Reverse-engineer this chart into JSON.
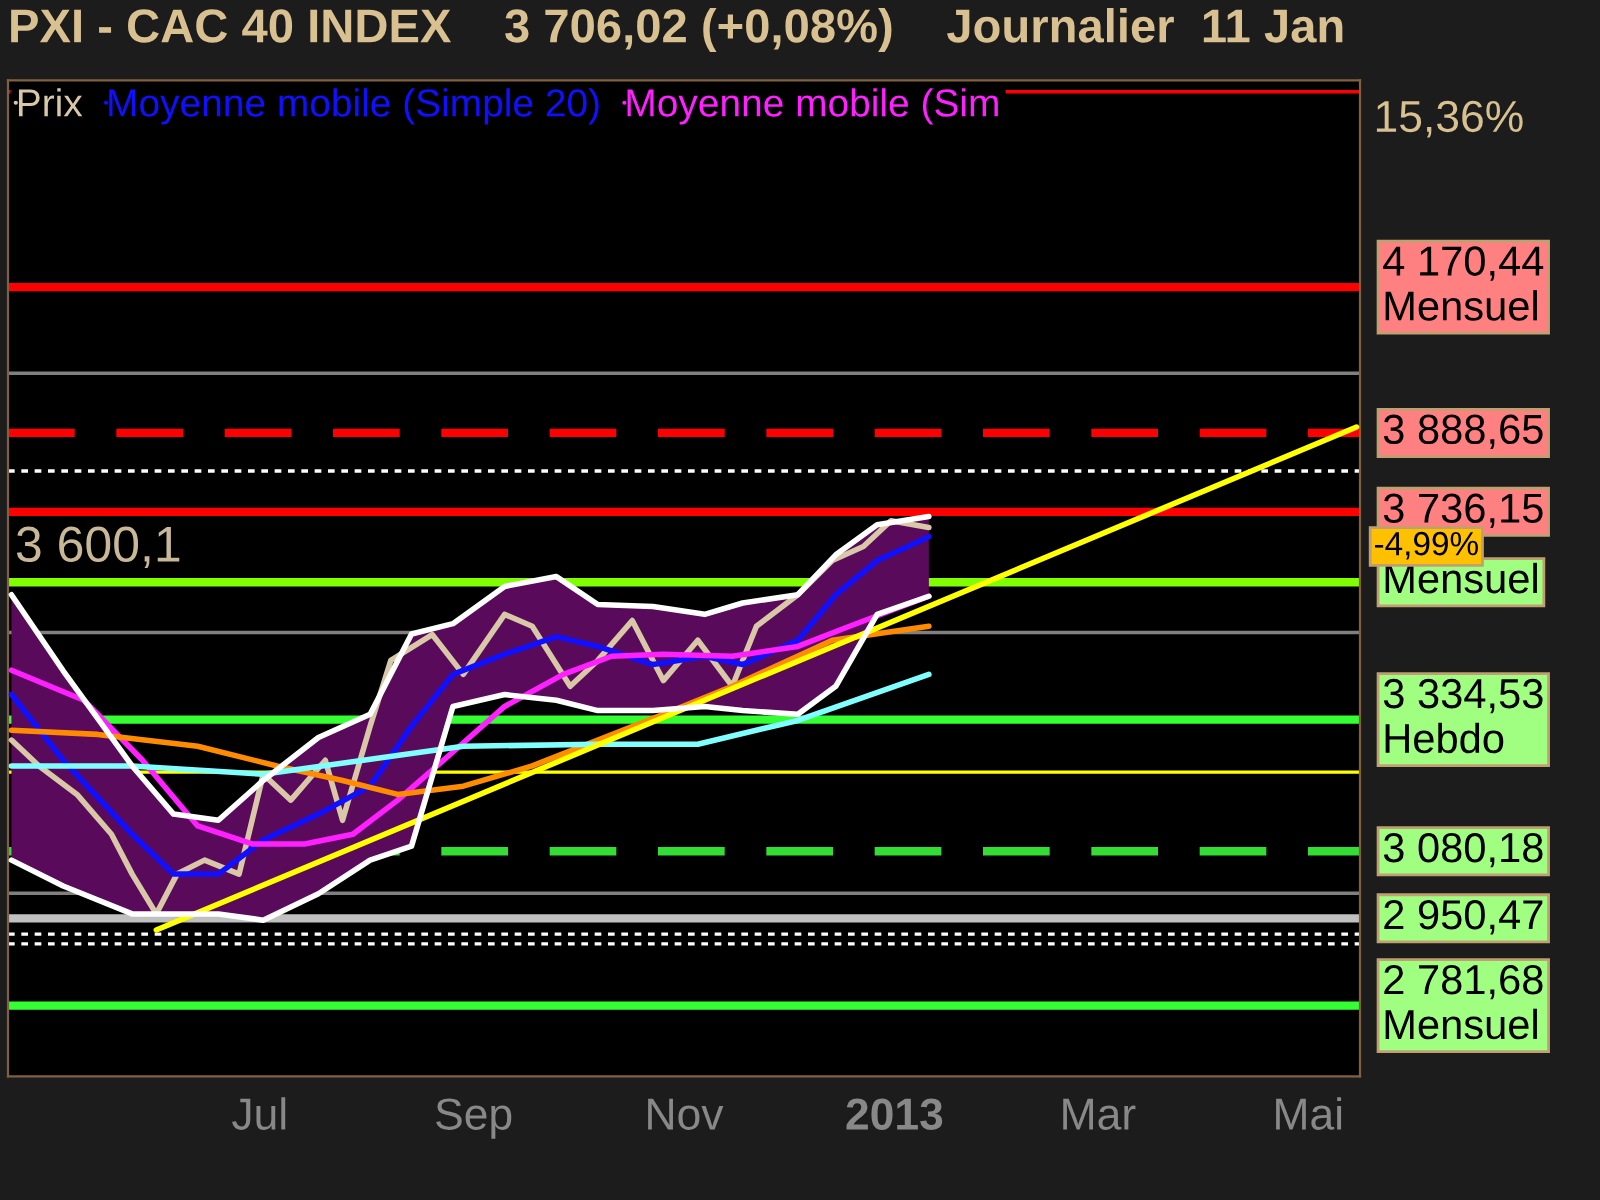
{
  "chart_data": {
    "type": "line",
    "title": "PXI - CAC 40 INDEX    3 706,02 (+0,08%)    Journalier  11 Jan",
    "xlim": [
      "2012-04-19",
      "2013-05-16"
    ],
    "ylim": [
      2645,
      4570
    ],
    "xticks": [
      {
        "value": "2012-07-01",
        "label": "Jul"
      },
      {
        "value": "2012-09-01",
        "label": "Sep"
      },
      {
        "value": "2012-11-01",
        "label": "Nov"
      },
      {
        "value": "2013-01-01",
        "label": "2013"
      },
      {
        "value": "2013-03-01",
        "label": "Mar"
      },
      {
        "value": "2013-05-01",
        "label": "Mai"
      }
    ],
    "tick_labels": "x",
    "grid": false,
    "legend": "top left",
    "series": [
      {
        "name": "Prix",
        "color": "#d8c8a8",
        "x": [
          "2012-04-20",
          "2012-04-28",
          "2012-05-09",
          "2012-05-19",
          "2012-05-25",
          "2012-06-01",
          "2012-06-07",
          "2012-06-15",
          "2012-06-25",
          "2012-07-02",
          "2012-07-10",
          "2012-07-20",
          "2012-07-25",
          "2012-08-02",
          "2012-08-08",
          "2012-08-20",
          "2012-08-29",
          "2012-09-10",
          "2012-09-18",
          "2012-09-29",
          "2012-10-07",
          "2012-10-17",
          "2012-10-26",
          "2012-11-05",
          "2012-11-15",
          "2012-11-22",
          "2012-12-04",
          "2012-12-14",
          "2012-12-23",
          "2012-12-31",
          "2013-01-11"
        ],
        "values": [
          3295,
          3245,
          3190,
          3113,
          3036,
          2959,
          3036,
          3063,
          3036,
          3229,
          3179,
          3256,
          3140,
          3322,
          3449,
          3499,
          3422,
          3538,
          3515,
          3399,
          3449,
          3526,
          3410,
          3488,
          3399,
          3515,
          3576,
          3642,
          3669,
          3719,
          3706
        ]
      },
      {
        "name": "Moyenne mobile (Simple 20)",
        "color": "#1010ff",
        "x": [
          "2012-04-20",
          "2012-05-05",
          "2012-05-25",
          "2012-06-06",
          "2012-06-19",
          "2012-07-02",
          "2012-07-18",
          "2012-08-02",
          "2012-08-14",
          "2012-08-26",
          "2012-09-10",
          "2012-09-25",
          "2012-10-07",
          "2012-10-23",
          "2012-11-07",
          "2012-11-18",
          "2012-12-04",
          "2012-12-15",
          "2012-12-27",
          "2013-01-11"
        ],
        "values": [
          3383,
          3256,
          3113,
          3036,
          3036,
          3102,
          3152,
          3206,
          3322,
          3422,
          3461,
          3495,
          3476,
          3441,
          3457,
          3441,
          3488,
          3576,
          3642,
          3688
        ],
        "upper": [
          3576,
          3429,
          3245,
          3152,
          3140,
          3217,
          3300,
          3345,
          3500,
          3520,
          3592,
          3611,
          3557,
          3553,
          3538,
          3560,
          3576,
          3653,
          3711,
          3727
        ],
        "lower": [
          3063,
          3013,
          2959,
          2959,
          2959,
          2947,
          2998,
          3063,
          3090,
          3360,
          3383,
          3372,
          3352,
          3352,
          3360,
          3352,
          3345,
          3399,
          3538,
          3573
        ]
      },
      {
        "name": "Moyenne mobile (Sim",
        "color": "#ff20ff",
        "x": [
          "2012-04-20",
          "2012-05-11",
          "2012-05-28",
          "2012-06-13",
          "2012-06-29",
          "2012-07-14",
          "2012-07-28",
          "2012-08-10",
          "2012-08-26",
          "2012-09-10",
          "2012-09-27",
          "2012-10-11",
          "2012-10-26",
          "2012-11-15",
          "2012-12-04",
          "2012-12-19",
          "2013-01-11"
        ],
        "values": [
          3430,
          3372,
          3256,
          3129,
          3094,
          3094,
          3113,
          3179,
          3272,
          3360,
          3422,
          3457,
          3461,
          3457,
          3476,
          3515,
          3573
        ]
      },
      {
        "color": "#ff8c00",
        "x": [
          "2012-04-20",
          "2012-05-15",
          "2012-06-13",
          "2012-07-06",
          "2012-07-25",
          "2012-08-10",
          "2012-08-29",
          "2012-09-18",
          "2012-10-07",
          "2012-10-26",
          "2012-11-15",
          "2012-12-14",
          "2013-01-11"
        ],
        "values": [
          3314,
          3306,
          3283,
          3245,
          3217,
          3190,
          3206,
          3245,
          3295,
          3345,
          3399,
          3488,
          3515
        ]
      },
      {
        "color": "#80ffff",
        "x": [
          "2012-04-20",
          "2012-05-25",
          "2012-07-02",
          "2012-07-31",
          "2012-08-29",
          "2012-10-07",
          "2012-11-05",
          "2012-12-04",
          "2013-01-11"
        ],
        "values": [
          3245,
          3245,
          3229,
          3256,
          3283,
          3287,
          3287,
          3333,
          3422
        ]
      },
      {
        "color": "#ffff00",
        "x": [
          "2012-06-01",
          "2013-05-15"
        ],
        "values": [
          2928,
          3900
        ]
      },
      {
        "color": "#ffffff",
        "x": [
          "2012-04-20",
          "2012-05-05",
          "2012-05-25",
          "2012-06-06",
          "2012-06-19",
          "2012-07-02",
          "2012-07-18",
          "2012-08-02",
          "2012-08-14",
          "2012-08-26",
          "2012-09-10",
          "2012-09-25",
          "2012-10-07",
          "2012-10-23",
          "2012-11-07",
          "2012-11-18",
          "2012-12-04",
          "2012-12-15",
          "2012-12-27",
          "2013-01-11"
        ],
        "values": [
          3576,
          3429,
          3245,
          3152,
          3140,
          3217,
          3300,
          3345,
          3500,
          3520,
          3592,
          3611,
          3557,
          3553,
          3538,
          3560,
          3576,
          3653,
          3711,
          3727
        ]
      },
      {
        "color": "#ffffff",
        "x": [
          "2012-04-20",
          "2012-05-05",
          "2012-05-25",
          "2012-06-06",
          "2012-06-19",
          "2012-07-02",
          "2012-07-18",
          "2012-08-02",
          "2012-08-14",
          "2012-08-26",
          "2012-09-10",
          "2012-09-25",
          "2012-10-07",
          "2012-10-23",
          "2012-11-07",
          "2012-11-18",
          "2012-12-04",
          "2012-12-15",
          "2012-12-27",
          "2013-01-11"
        ],
        "values": [
          3063,
          3013,
          2959,
          2959,
          2959,
          2947,
          2998,
          3063,
          3090,
          3360,
          3383,
          3372,
          3352,
          3352,
          3360,
          3352,
          3345,
          3399,
          3538,
          3573
        ]
      }
    ],
    "ref_lines": [
      {
        "axis": "y",
        "value": 4548,
        "color": "#ff0000",
        "line_style": "solid"
      },
      {
        "axis": "y",
        "value": 4170.44,
        "label": "4 170,44\nMensuel",
        "color": "#ff0000",
        "line_style": "solid"
      },
      {
        "axis": "y",
        "value": 4004,
        "color": "#808080",
        "line_style": "solid"
      },
      {
        "axis": "y",
        "value": 3888.65,
        "label": "3 888,65",
        "color": "#ff0000",
        "line_style": "dashed"
      },
      {
        "axis": "y",
        "value": 3815,
        "color": "#ffffff",
        "line_style": "dotted"
      },
      {
        "axis": "y",
        "value": 3736.15,
        "label": "3 736,15",
        "color": "#ff0000",
        "line_style": "solid"
      },
      {
        "axis": "y",
        "value": 3600.1,
        "label": "Mensuel",
        "color": "#80ff00",
        "line_style": "solid"
      },
      {
        "axis": "y",
        "value": 3503,
        "color": "#808080",
        "line_style": "solid"
      },
      {
        "axis": "y",
        "value": 3334.53,
        "label": "3 334,53\nHebdo",
        "color": "#33ff33",
        "line_style": "solid"
      },
      {
        "axis": "y",
        "value": 3233,
        "color": "#ffff00",
        "line_style": "solid"
      },
      {
        "axis": "y",
        "value": 3080.18,
        "label": "3 080,18",
        "color": "#33dd33",
        "line_style": "dashed"
      },
      {
        "axis": "y",
        "value": 2999,
        "color": "#808080",
        "line_style": "solid"
      },
      {
        "axis": "y",
        "value": 2950.47,
        "label": "2 950,47",
        "color": "#c0c0c0",
        "line_style": "solid"
      },
      {
        "axis": "y",
        "value": 2920,
        "color": "#ffffff",
        "line_style": "dotted"
      },
      {
        "axis": "y",
        "value": 2901,
        "color": "#ffffff",
        "line_style": "dotted"
      },
      {
        "axis": "y",
        "value": 2781.68,
        "label": "2 781,68\nMensuel",
        "color": "#33ff33",
        "line_style": "solid"
      }
    ],
    "annotations": [
      "15,36%",
      "-4,99%",
      {
        "text": "3 600,1",
        "x": "2012-04-21",
        "y": 3600.1
      }
    ]
  }
}
